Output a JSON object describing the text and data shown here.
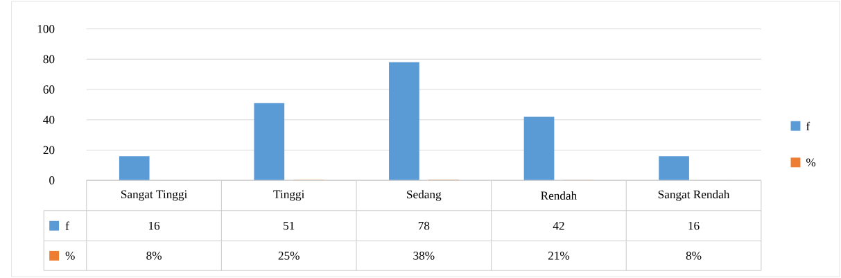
{
  "chart_data": {
    "type": "bar",
    "categories": [
      "Sangat Tinggi",
      "Tinggi",
      "Sedang",
      "Rendah",
      "Sangat Rendah"
    ],
    "series": [
      {
        "name": "f",
        "color": "#5b9bd5",
        "values": [
          16,
          51,
          78,
          42,
          16
        ],
        "value_labels": [
          "16",
          "51",
          "78",
          "42",
          "16"
        ]
      },
      {
        "name": "%",
        "color": "#ed7d31",
        "values": [
          0.08,
          0.25,
          0.38,
          0.21,
          0.08
        ],
        "value_labels": [
          "8%",
          "25%",
          "38%",
          "21%",
          "8%"
        ]
      }
    ],
    "ylim": [
      0,
      100
    ],
    "yticks": [
      0,
      20,
      40,
      60,
      80,
      100
    ],
    "grid": "y",
    "legend": "right"
  }
}
